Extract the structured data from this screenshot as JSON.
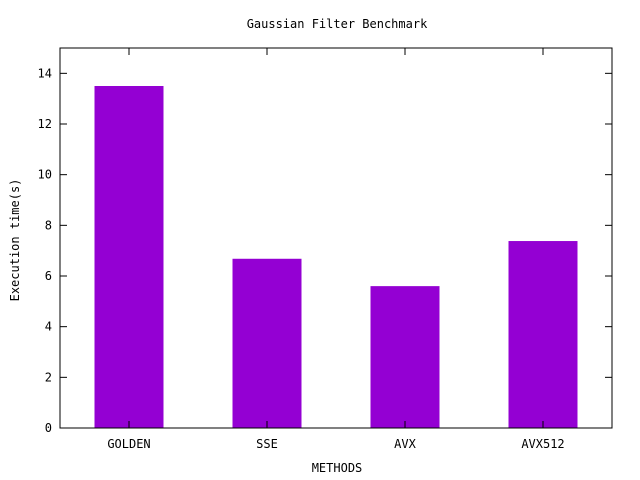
{
  "chart_data": {
    "type": "bar",
    "title": "Gaussian Filter Benchmark",
    "xlabel": "METHODS",
    "ylabel": "Execution time(s)",
    "categories": [
      "GOLDEN",
      "SSE",
      "AVX",
      "AVX512"
    ],
    "values": [
      13.5,
      6.68,
      5.6,
      7.38
    ],
    "ylim": [
      0,
      15
    ],
    "yticks": [
      0,
      2,
      4,
      6,
      8,
      10,
      12,
      14
    ],
    "grid": false,
    "legend": "none",
    "bar_color": "#9400d3"
  }
}
